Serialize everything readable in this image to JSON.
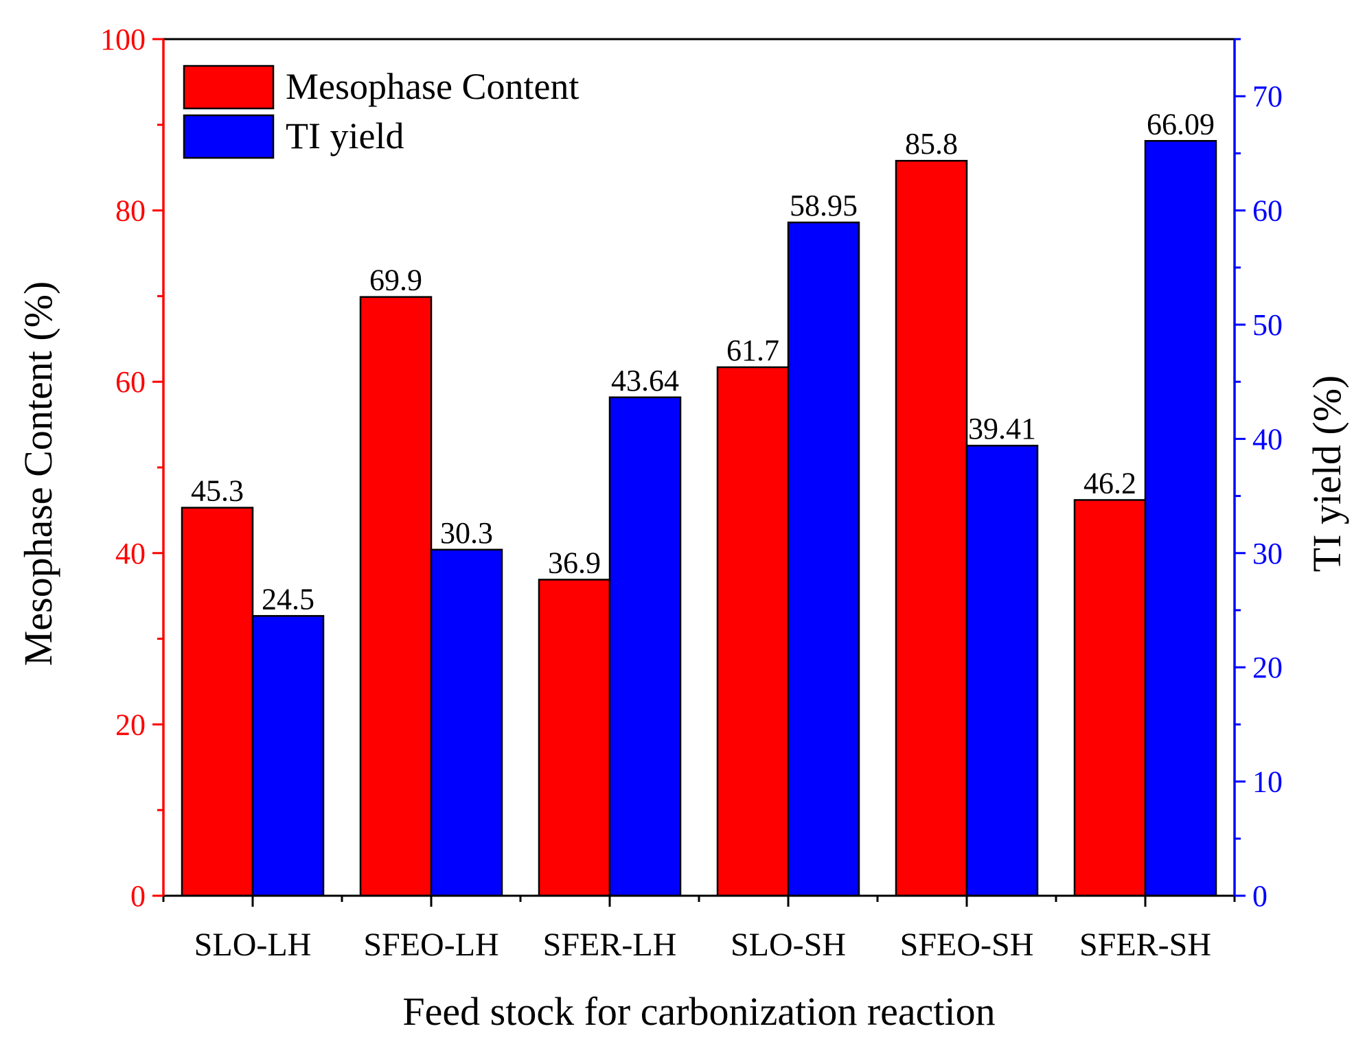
{
  "chart_data": {
    "type": "bar",
    "categories": [
      "SLO-LH",
      "SFEO-LH",
      "SFER-LH",
      "SLO-SH",
      "SFEO-SH",
      "SFER-SH"
    ],
    "series": [
      {
        "name": "Mesophase Content",
        "axis": "left",
        "color": "#ff0000",
        "values": [
          45.3,
          69.9,
          36.9,
          61.7,
          85.8,
          46.2
        ],
        "labels": [
          "45.3",
          "69.9",
          "36.9",
          "61.7",
          "85.8",
          "46.2"
        ]
      },
      {
        "name": "TI yield",
        "axis": "right",
        "color": "#0000ff",
        "values": [
          24.5,
          30.3,
          43.64,
          58.95,
          39.41,
          66.09
        ],
        "labels": [
          "24.5",
          "30.3",
          "43.64",
          "58.95",
          "39.41",
          "66.09"
        ]
      }
    ],
    "xlabel": "Feed stock for carbonization reaction",
    "ylabel_left": "Mesophase Content (%)",
    "ylabel_right": "TI yield (%)",
    "ylim_left": [
      0,
      100
    ],
    "ylim_right": [
      0,
      75
    ],
    "yticks_left": [
      "0",
      "20",
      "40",
      "60",
      "80",
      "100"
    ],
    "yticks_right": [
      "0",
      "10",
      "20",
      "30",
      "40",
      "50",
      "60",
      "70"
    ],
    "left_axis_color": "#ff0000",
    "right_axis_color": "#0000ff",
    "legend_position": "top-left",
    "grid": false
  }
}
